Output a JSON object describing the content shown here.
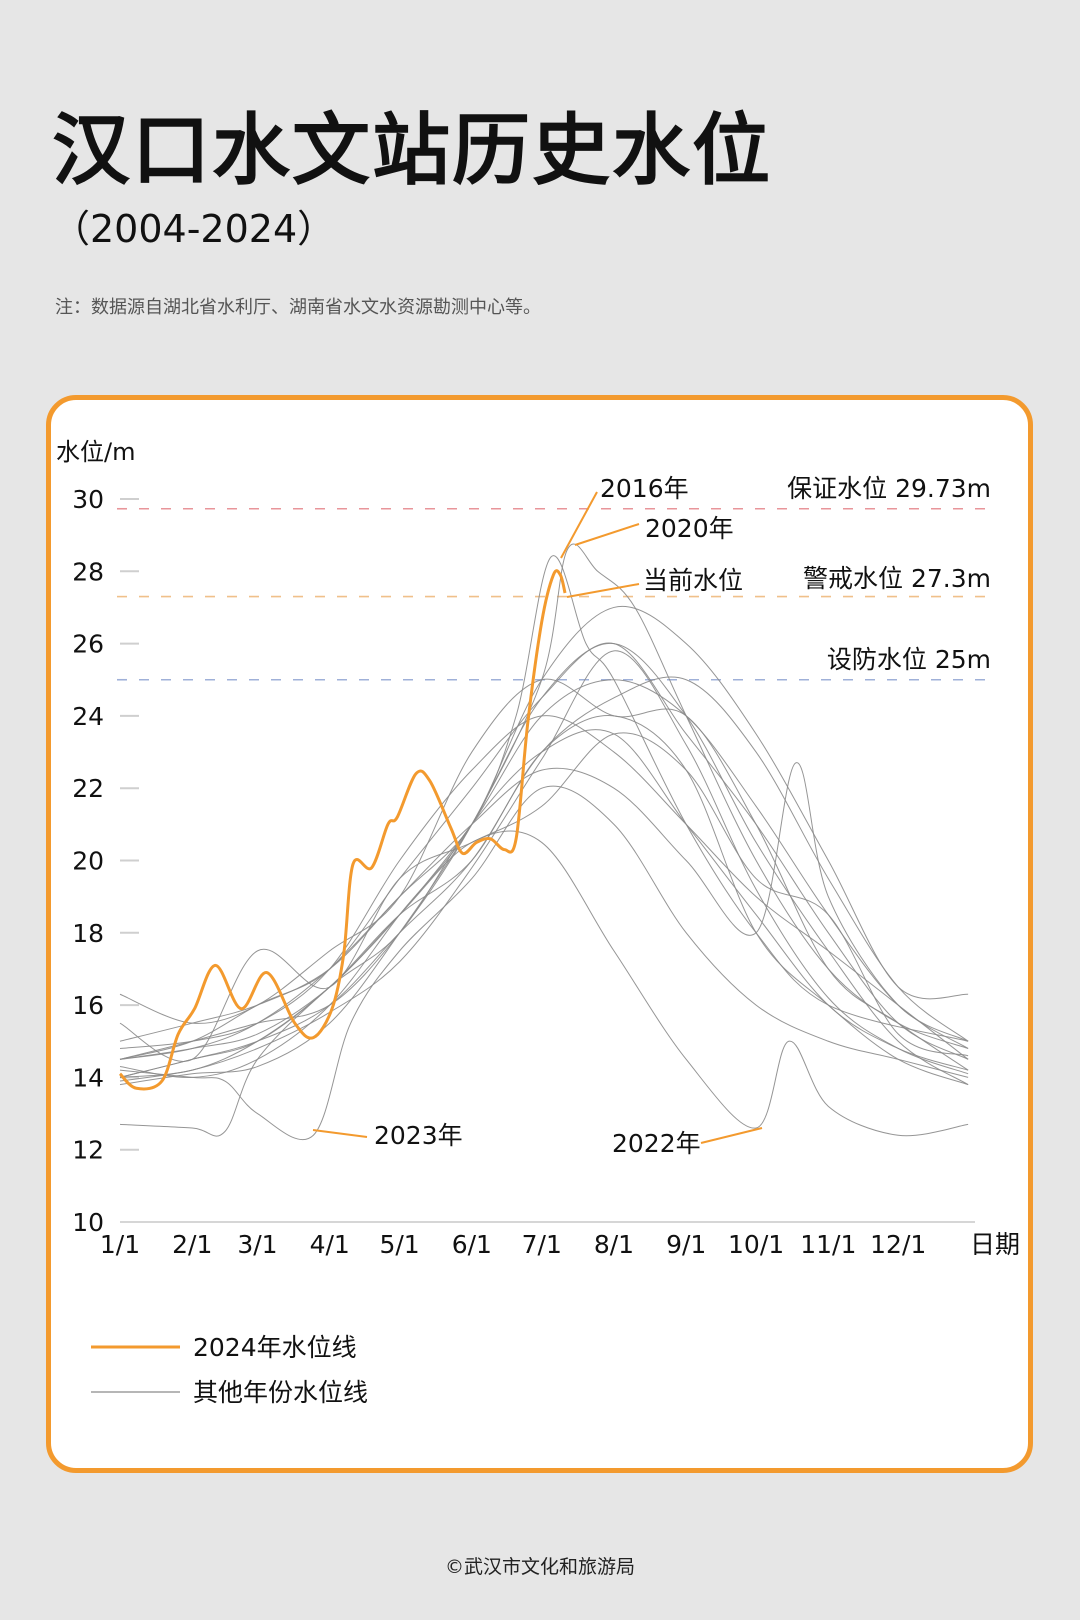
{
  "title": "汉口水文站历史水位",
  "subtitle": "（2004-2024）",
  "note": "注：数据源自湖北省水利厅、湖南省水文水资源勘测中心等。",
  "footer": "©武汉市文化和旅游局",
  "colors": {
    "accent": "#f39a2e",
    "other_years": "#8a8a8a",
    "guarantee": "#e8959a",
    "warning": "#f0c08a",
    "defense": "#9fb0d8",
    "background": "#e6e6e6"
  },
  "chart_data": {
    "type": "line",
    "ylabel": "水位/m",
    "xlabel": "日期",
    "ylim": [
      10,
      30
    ],
    "yticks": [
      "10",
      "12",
      "14",
      "16",
      "18",
      "20",
      "22",
      "24",
      "26",
      "28",
      "30"
    ],
    "xticks": [
      "1/1",
      "2/1",
      "3/1",
      "4/1",
      "5/1",
      "6/1",
      "7/1",
      "8/1",
      "9/1",
      "10/1",
      "11/1",
      "12/1"
    ],
    "reference_lines": [
      {
        "label": "保证水位  29.73m",
        "value": 29.73,
        "color": "#e8959a"
      },
      {
        "label": "警戒水位  27.3m",
        "value": 27.3,
        "color": "#f0c08a"
      },
      {
        "label": "设防水位  25m",
        "value": 25,
        "color": "#9fb0d8"
      }
    ],
    "annotations": [
      {
        "label": "2016年",
        "points_to": [
          "7/5",
          28.4
        ]
      },
      {
        "label": "2020年",
        "points_to": [
          "7/12",
          28.6
        ]
      },
      {
        "label": "当前水位",
        "points_to": [
          "7/11",
          27.4
        ]
      },
      {
        "label": "2023年",
        "points_to": [
          "3/25",
          12.4
        ]
      },
      {
        "label": "2022年",
        "points_to": [
          "10/1",
          12.6
        ]
      }
    ],
    "legend": [
      {
        "label": "2024年水位线",
        "color": "#f39a2e"
      },
      {
        "label": "其他年份水位线",
        "color": "#8a8a8a"
      }
    ],
    "highlight_series": {
      "name": "2024年水位线",
      "points": [
        [
          "1/1",
          14.1
        ],
        [
          "1/8",
          13.7
        ],
        [
          "1/19",
          13.9
        ],
        [
          "1/26",
          15.2
        ],
        [
          "2/2",
          15.9
        ],
        [
          "2/11",
          17.1
        ],
        [
          "2/22",
          15.9
        ],
        [
          "3/5",
          16.9
        ],
        [
          "3/17",
          15.5
        ],
        [
          "3/25",
          15.1
        ],
        [
          "4/2",
          15.9
        ],
        [
          "4/7",
          17.4
        ],
        [
          "4/11",
          19.9
        ],
        [
          "4/19",
          19.8
        ],
        [
          "4/26",
          21.0
        ],
        [
          "4/30",
          21.2
        ],
        [
          "5/8",
          22.4
        ],
        [
          "5/14",
          22.2
        ],
        [
          "5/23",
          20.9
        ],
        [
          "5/28",
          20.2
        ],
        [
          "6/3",
          20.5
        ],
        [
          "6/9",
          20.6
        ],
        [
          "6/15",
          20.3
        ],
        [
          "6/20",
          20.6
        ],
        [
          "6/25",
          23.8
        ],
        [
          "7/1",
          26.6
        ],
        [
          "7/6",
          27.9
        ],
        [
          "7/9",
          27.9
        ],
        [
          "7/11",
          27.4
        ]
      ]
    },
    "other_series": [
      [
        [
          "1/1",
          14.5
        ],
        [
          "2/1",
          15
        ],
        [
          "3/1",
          16
        ],
        [
          "4/1",
          17
        ],
        [
          "5/1",
          19.5
        ],
        [
          "6/1",
          22
        ],
        [
          "7/1",
          24.5
        ],
        [
          "8/1",
          26
        ],
        [
          "9/1",
          23.5
        ],
        [
          "10/1",
          21
        ],
        [
          "11/1",
          18
        ],
        [
          "12/1",
          15.5
        ],
        [
          "12/31",
          14.5
        ]
      ],
      [
        [
          "1/1",
          14
        ],
        [
          "2/1",
          14.2
        ],
        [
          "3/1",
          15
        ],
        [
          "4/1",
          16.5
        ],
        [
          "5/1",
          18.5
        ],
        [
          "6/1",
          21
        ],
        [
          "7/1",
          24
        ],
        [
          "8/1",
          25
        ],
        [
          "9/1",
          24
        ],
        [
          "10/1",
          21.5
        ],
        [
          "11/1",
          18.5
        ],
        [
          "12/1",
          16
        ],
        [
          "12/31",
          14.8
        ]
      ],
      [
        [
          "1/1",
          15
        ],
        [
          "2/1",
          15.5
        ],
        [
          "3/1",
          16
        ],
        [
          "4/1",
          17
        ],
        [
          "5/1",
          19
        ],
        [
          "6/1",
          21
        ],
        [
          "6/20",
          24
        ],
        [
          "7/5",
          28.4
        ],
        [
          "7/20",
          26
        ],
        [
          "8/1",
          25
        ],
        [
          "9/1",
          21
        ],
        [
          "10/1",
          18
        ],
        [
          "11/1",
          16
        ],
        [
          "12/31",
          15
        ]
      ],
      [
        [
          "1/1",
          14.5
        ],
        [
          "2/1",
          15
        ],
        [
          "3/1",
          15.5
        ],
        [
          "4/1",
          16
        ],
        [
          "5/1",
          18
        ],
        [
          "6/1",
          21
        ],
        [
          "7/1",
          25
        ],
        [
          "7/12",
          28.6
        ],
        [
          "7/25",
          28
        ],
        [
          "8/10",
          27
        ],
        [
          "9/1",
          24
        ],
        [
          "10/1",
          20
        ],
        [
          "11/1",
          17
        ],
        [
          "12/1",
          15.5
        ],
        [
          "12/31",
          14.8
        ]
      ],
      [
        [
          "1/1",
          14.5
        ],
        [
          "2/1",
          14.8
        ],
        [
          "3/1",
          15.2
        ],
        [
          "4/1",
          16.5
        ],
        [
          "5/1",
          18.5
        ],
        [
          "6/1",
          20.5
        ],
        [
          "7/1",
          20.5
        ],
        [
          "8/1",
          17.5
        ],
        [
          "9/1",
          14.5
        ],
        [
          "10/1",
          12.6
        ],
        [
          "10/15",
          15.0
        ],
        [
          "11/1",
          13.2
        ],
        [
          "12/1",
          12.4
        ],
        [
          "12/31",
          12.7
        ]
      ],
      [
        [
          "1/1",
          14.2
        ],
        [
          "2/1",
          14
        ],
        [
          "2/15",
          13.9
        ],
        [
          "3/1",
          13
        ],
        [
          "3/25",
          12.4
        ],
        [
          "4/10",
          15.5
        ],
        [
          "5/1",
          17.5
        ],
        [
          "6/1",
          19.5
        ],
        [
          "7/1",
          22
        ],
        [
          "8/1",
          21
        ],
        [
          "9/1",
          18
        ],
        [
          "10/1",
          16
        ],
        [
          "11/1",
          15
        ],
        [
          "12/1",
          14.5
        ],
        [
          "12/31",
          14
        ]
      ],
      [
        [
          "1/1",
          12.7
        ],
        [
          "2/1",
          12.6
        ],
        [
          "2/15",
          12.5
        ],
        [
          "3/1",
          14.5
        ],
        [
          "4/1",
          16.5
        ],
        [
          "5/1",
          18
        ],
        [
          "6/1",
          21
        ],
        [
          "7/1",
          23
        ],
        [
          "8/1",
          23.5
        ],
        [
          "9/1",
          21
        ],
        [
          "10/1",
          18.5
        ],
        [
          "11/1",
          16
        ],
        [
          "12/1",
          14.8
        ],
        [
          "12/31",
          14.2
        ]
      ],
      [
        [
          "1/1",
          14
        ],
        [
          "2/1",
          14.5
        ],
        [
          "3/1",
          15
        ],
        [
          "4/1",
          16
        ],
        [
          "5/1",
          18
        ],
        [
          "6/1",
          20
        ],
        [
          "7/1",
          23
        ],
        [
          "8/1",
          24.5
        ],
        [
          "9/1",
          25
        ],
        [
          "10/1",
          23
        ],
        [
          "11/1",
          19.5
        ],
        [
          "12/1",
          16.5
        ],
        [
          "12/31",
          15
        ]
      ],
      [
        [
          "1/1",
          14.5
        ],
        [
          "2/1",
          14.8
        ],
        [
          "3/1",
          15.5
        ],
        [
          "4/1",
          17
        ],
        [
          "5/1",
          19
        ],
        [
          "6/1",
          21
        ],
        [
          "7/1",
          22.5
        ],
        [
          "8/1",
          22
        ],
        [
          "9/1",
          20
        ],
        [
          "10/1",
          18
        ],
        [
          "10/18",
          22.7
        ],
        [
          "11/1",
          19
        ],
        [
          "12/1",
          16
        ],
        [
          "12/31",
          15
        ]
      ],
      [
        [
          "1/1",
          16.3
        ],
        [
          "2/1",
          15.5
        ],
        [
          "3/1",
          16
        ],
        [
          "4/1",
          17.5
        ],
        [
          "5/1",
          19
        ],
        [
          "6/1",
          23
        ],
        [
          "7/1",
          25
        ],
        [
          "8/1",
          24
        ],
        [
          "9/1",
          24
        ],
        [
          "10/1",
          21
        ],
        [
          "11/1",
          17
        ],
        [
          "12/1",
          15.5
        ],
        [
          "12/31",
          14.2
        ]
      ],
      [
        [
          "1/1",
          13.8
        ],
        [
          "2/1",
          14.1
        ],
        [
          "3/1",
          14.3
        ],
        [
          "4/1",
          15.5
        ],
        [
          "5/1",
          18
        ],
        [
          "6/1",
          21
        ],
        [
          "7/1",
          24.5
        ],
        [
          "8/1",
          26
        ],
        [
          "9/1",
          24
        ],
        [
          "10/1",
          20.5
        ],
        [
          "11/1",
          17.5
        ],
        [
          "12/1",
          15
        ],
        [
          "12/31",
          13.8
        ]
      ],
      [
        [
          "1/1",
          14
        ],
        [
          "2/1",
          14.5
        ],
        [
          "3/1",
          15
        ],
        [
          "4/1",
          16.5
        ],
        [
          "5/1",
          18.5
        ],
        [
          "6/1",
          20
        ],
        [
          "7/1",
          23
        ],
        [
          "8/1",
          24
        ],
        [
          "9/1",
          22.5
        ],
        [
          "10/1",
          18
        ],
        [
          "11/1",
          16
        ],
        [
          "12/1",
          14.5
        ],
        [
          "12/31",
          13.8
        ]
      ],
      [
        [
          "1/1",
          14.8
        ],
        [
          "2/1",
          15
        ],
        [
          "3/1",
          15.5
        ],
        [
          "4/1",
          17
        ],
        [
          "5/1",
          20
        ],
        [
          "6/1",
          22.5
        ],
        [
          "7/1",
          24
        ],
        [
          "8/1",
          23
        ],
        [
          "9/1",
          21
        ],
        [
          "10/1",
          19
        ],
        [
          "11/1",
          17.5
        ],
        [
          "12/1",
          16
        ],
        [
          "12/31",
          14.5
        ]
      ],
      [
        [
          "1/1",
          14.3
        ],
        [
          "2/1",
          14
        ],
        [
          "3/1",
          14.5
        ],
        [
          "4/1",
          16
        ],
        [
          "5/1",
          18.5
        ],
        [
          "6/1",
          21
        ],
        [
          "7/1",
          25
        ],
        [
          "8/1",
          27
        ],
        [
          "9/1",
          26
        ],
        [
          "10/1",
          23.5
        ],
        [
          "11/1",
          20
        ],
        [
          "12/1",
          16.5
        ],
        [
          "12/31",
          16.3
        ]
      ],
      [
        [
          "1/1",
          15.5
        ],
        [
          "2/1",
          14.5
        ],
        [
          "3/1",
          17.5
        ],
        [
          "4/1",
          16.5
        ],
        [
          "5/1",
          19.5
        ],
        [
          "6/1",
          20.5
        ],
        [
          "7/1",
          21.5
        ],
        [
          "8/1",
          23.5
        ],
        [
          "9/1",
          22.5
        ],
        [
          "10/1",
          19.5
        ],
        [
          "11/1",
          18.5
        ],
        [
          "12/1",
          15.2
        ],
        [
          "12/31",
          14.6
        ]
      ],
      [
        [
          "1/1",
          13.9
        ],
        [
          "2/1",
          14.2
        ],
        [
          "3/1",
          14.8
        ],
        [
          "4/1",
          15.8
        ],
        [
          "5/1",
          17.2
        ],
        [
          "6/1",
          19.8
        ],
        [
          "7/1",
          22.8
        ],
        [
          "8/1",
          25.8
        ],
        [
          "9/1",
          23.2
        ],
        [
          "10/1",
          19.2
        ],
        [
          "11/1",
          16.2
        ],
        [
          "12/1",
          14.8
        ],
        [
          "12/31",
          14.1
        ]
      ]
    ]
  }
}
